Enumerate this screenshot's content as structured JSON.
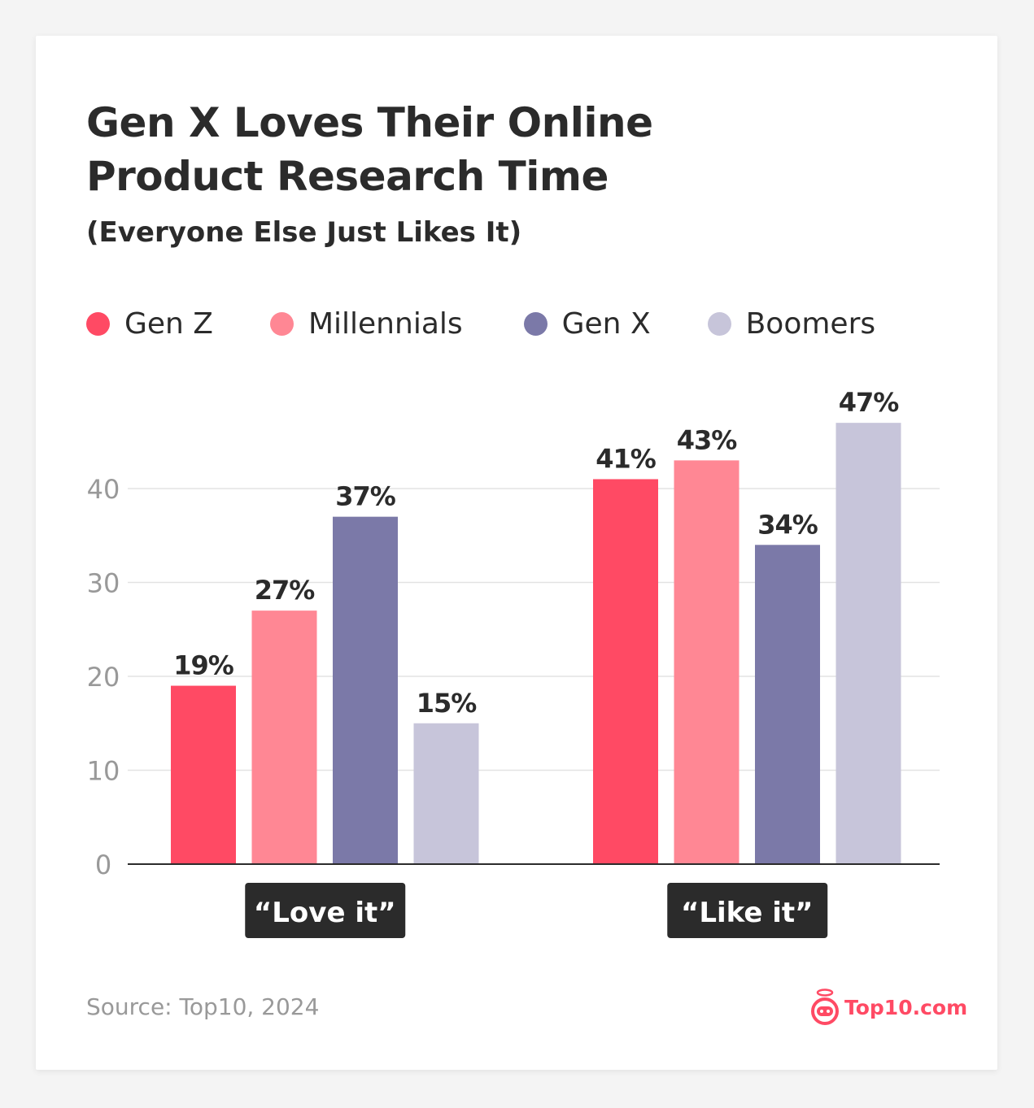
{
  "chart_data": {
    "type": "bar",
    "title": "Gen X Loves Their Online Product Research Time",
    "subtitle": "(Everyone Else Just Likes It)",
    "categories": [
      "“Love it”",
      "“Like it”"
    ],
    "series": [
      {
        "name": "Gen Z",
        "color": "#ff4a64",
        "values": [
          19,
          41
        ],
        "labels": [
          "19%",
          "41%"
        ]
      },
      {
        "name": "Millennials",
        "color": "#ff8794",
        "values": [
          27,
          43
        ],
        "labels": [
          "27%",
          "43%"
        ]
      },
      {
        "name": "Gen X",
        "color": "#7b79a8",
        "values": [
          37,
          34
        ],
        "labels": [
          "37%",
          "34%"
        ]
      },
      {
        "name": "Boomers",
        "color": "#c7c5da",
        "values": [
          15,
          47
        ],
        "labels": [
          "15%",
          "47%"
        ]
      }
    ],
    "yticks": [
      "0",
      "10",
      "20",
      "30",
      "40"
    ],
    "ylim": [
      0,
      50
    ],
    "grid": true,
    "legend_position": "top"
  },
  "title_lines": [
    "Gen X Loves Their Online",
    "Product Research Time"
  ],
  "source": "Source: Top10, 2024",
  "logo_text": "Top10.com"
}
